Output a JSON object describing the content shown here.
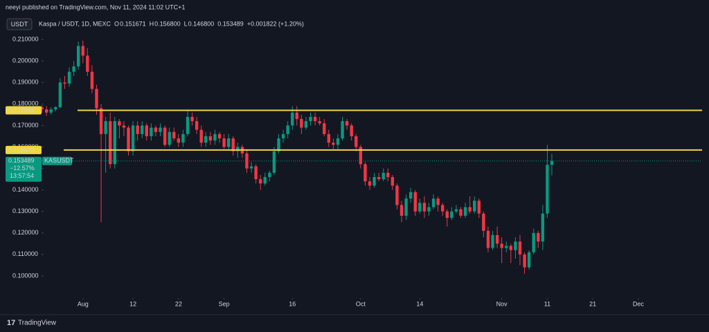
{
  "header": {
    "published": "neeyi published on TradingView.com, Nov 11, 2024 11:02 UTC+1",
    "currency_button": "USDT",
    "brand": "TradingView"
  },
  "chart_data": {
    "type": "candlestick",
    "legend": {
      "symbol": "Kaspa / USDT, 1D, MEXC",
      "open_key": "O",
      "open": "0.151671",
      "high_key": "H",
      "high": "0.156800",
      "low_key": "L",
      "low": "0.146800",
      "close": "0.153489",
      "change": "+0.001822 (+1.20%)"
    },
    "x": [
      "Jul 23",
      "Jul 24",
      "Jul 25",
      "Jul 26",
      "Jul 27",
      "Jul 28",
      "Jul 29",
      "Jul 30",
      "Jul 31",
      "Aug 1",
      "Aug 2",
      "Aug 3",
      "Aug 4",
      "Aug 5",
      "Aug 6",
      "Aug 7",
      "Aug 8",
      "Aug 9",
      "Aug 10",
      "Aug 11",
      "Aug 12",
      "Aug 13",
      "Aug 14",
      "Aug 15",
      "Aug 16",
      "Aug 17",
      "Aug 18",
      "Aug 19",
      "Aug 20",
      "Aug 21",
      "Aug 22",
      "Aug 23",
      "Aug 24",
      "Aug 25",
      "Aug 26",
      "Aug 27",
      "Aug 28",
      "Aug 29",
      "Aug 30",
      "Aug 31",
      "Sep 1",
      "Sep 2",
      "Sep 3",
      "Sep 4",
      "Sep 5",
      "Sep 6",
      "Sep 7",
      "Sep 8",
      "Sep 9",
      "Sep 10",
      "Sep 11",
      "Sep 12",
      "Sep 13",
      "Sep 14",
      "Sep 15",
      "Sep 16",
      "Sep 17",
      "Sep 18",
      "Sep 19",
      "Sep 20",
      "Sep 21",
      "Sep 22",
      "Sep 23",
      "Sep 24",
      "Sep 25",
      "Sep 26",
      "Sep 27",
      "Sep 28",
      "Sep 29",
      "Sep 30",
      "Oct 1",
      "Oct 2",
      "Oct 3",
      "Oct 4",
      "Oct 5",
      "Oct 6",
      "Oct 7",
      "Oct 8",
      "Oct 9",
      "Oct 10",
      "Oct 11",
      "Oct 12",
      "Oct 13",
      "Oct 14",
      "Oct 15",
      "Oct 16",
      "Oct 17",
      "Oct 18",
      "Oct 19",
      "Oct 20",
      "Oct 21",
      "Oct 22",
      "Oct 23",
      "Oct 24",
      "Oct 25",
      "Oct 26",
      "Oct 27",
      "Oct 28",
      "Oct 29",
      "Oct 30",
      "Oct 31",
      "Nov 1",
      "Nov 2",
      "Nov 3",
      "Nov 4",
      "Nov 5",
      "Nov 6",
      "Nov 7",
      "Nov 8",
      "Nov 9",
      "Nov 10",
      "Nov 11",
      "Nov 12"
    ],
    "open": [
      0.1785,
      0.1775,
      0.176,
      0.1775,
      0.1785,
      0.19,
      0.1895,
      0.195,
      0.1975,
      0.207,
      0.2025,
      0.195,
      0.187,
      0.178,
      0.166,
      0.172,
      0.152,
      0.172,
      0.17,
      0.169,
      0.158,
      0.17,
      0.166,
      0.17,
      0.165,
      0.169,
      0.167,
      0.169,
      0.161,
      0.167,
      0.164,
      0.162,
      0.166,
      0.174,
      0.172,
      0.168,
      0.162,
      0.165,
      0.163,
      0.166,
      0.164,
      0.16,
      0.164,
      0.158,
      0.16,
      0.157,
      0.15,
      0.151,
      0.145,
      0.143,
      0.146,
      0.148,
      0.158,
      0.164,
      0.166,
      0.17,
      0.176,
      0.173,
      0.169,
      0.172,
      0.174,
      0.172,
      0.171,
      0.166,
      0.162,
      0.161,
      0.164,
      0.172,
      0.17,
      0.165,
      0.16,
      0.152,
      0.144,
      0.142,
      0.146,
      0.145,
      0.148,
      0.146,
      0.142,
      0.133,
      0.128,
      0.136,
      0.139,
      0.13,
      0.134,
      0.13,
      0.132,
      0.136,
      0.133,
      0.13,
      0.127,
      0.13,
      0.131,
      0.128,
      0.132,
      0.13,
      0.135,
      0.129,
      0.121,
      0.113,
      0.119,
      0.115,
      0.113,
      0.114,
      0.112,
      0.116,
      0.11,
      0.104,
      0.111,
      0.12,
      0.116,
      0.129,
      0.151671
    ],
    "high": [
      0.1795,
      0.179,
      0.1785,
      0.179,
      0.192,
      0.193,
      0.197,
      0.2,
      0.209,
      0.2095,
      0.206,
      0.198,
      0.189,
      0.18,
      0.174,
      0.176,
      0.174,
      0.173,
      0.172,
      0.17,
      0.172,
      0.172,
      0.172,
      0.171,
      0.171,
      0.17,
      0.171,
      0.17,
      0.169,
      0.169,
      0.166,
      0.168,
      0.177,
      0.176,
      0.174,
      0.17,
      0.167,
      0.167,
      0.168,
      0.167,
      0.166,
      0.166,
      0.165,
      0.162,
      0.161,
      0.159,
      0.153,
      0.152,
      0.147,
      0.148,
      0.149,
      0.16,
      0.166,
      0.168,
      0.172,
      0.179,
      0.179,
      0.175,
      0.174,
      0.176,
      0.176,
      0.174,
      0.173,
      0.168,
      0.164,
      0.166,
      0.174,
      0.173,
      0.171,
      0.166,
      0.161,
      0.153,
      0.146,
      0.148,
      0.148,
      0.15,
      0.15,
      0.147,
      0.143,
      0.135,
      0.138,
      0.141,
      0.14,
      0.136,
      0.137,
      0.134,
      0.138,
      0.137,
      0.134,
      0.131,
      0.132,
      0.133,
      0.132,
      0.134,
      0.137,
      0.137,
      0.136,
      0.13,
      0.123,
      0.121,
      0.123,
      0.118,
      0.116,
      0.115,
      0.118,
      0.119,
      0.111,
      0.112,
      0.122,
      0.121,
      0.133,
      0.161,
      0.1568
    ],
    "low": [
      0.176,
      0.1745,
      0.175,
      0.1765,
      0.178,
      0.187,
      0.188,
      0.193,
      0.196,
      0.199,
      0.193,
      0.185,
      0.175,
      0.125,
      0.148,
      0.15,
      0.15,
      0.164,
      0.165,
      0.156,
      0.156,
      0.163,
      0.164,
      0.163,
      0.163,
      0.165,
      0.165,
      0.16,
      0.16,
      0.163,
      0.16,
      0.16,
      0.165,
      0.17,
      0.166,
      0.16,
      0.16,
      0.161,
      0.161,
      0.162,
      0.159,
      0.159,
      0.156,
      0.155,
      0.155,
      0.148,
      0.148,
      0.143,
      0.14,
      0.142,
      0.144,
      0.147,
      0.157,
      0.162,
      0.164,
      0.168,
      0.17,
      0.166,
      0.168,
      0.17,
      0.17,
      0.17,
      0.165,
      0.16,
      0.159,
      0.159,
      0.163,
      0.168,
      0.163,
      0.158,
      0.15,
      0.142,
      0.14,
      0.141,
      0.144,
      0.144,
      0.144,
      0.14,
      0.131,
      0.125,
      0.126,
      0.134,
      0.128,
      0.129,
      0.127,
      0.128,
      0.131,
      0.13,
      0.128,
      0.123,
      0.126,
      0.129,
      0.127,
      0.127,
      0.129,
      0.129,
      0.127,
      0.118,
      0.111,
      0.112,
      0.113,
      0.106,
      0.111,
      0.106,
      0.108,
      0.105,
      0.101,
      0.103,
      0.11,
      0.113,
      0.112,
      0.127,
      0.1468
    ],
    "close": [
      0.1775,
      0.176,
      0.1775,
      0.1785,
      0.19,
      0.1895,
      0.195,
      0.1975,
      0.207,
      0.2025,
      0.195,
      0.187,
      0.178,
      0.166,
      0.172,
      0.152,
      0.172,
      0.17,
      0.169,
      0.158,
      0.17,
      0.166,
      0.17,
      0.165,
      0.169,
      0.167,
      0.169,
      0.161,
      0.167,
      0.164,
      0.162,
      0.166,
      0.174,
      0.172,
      0.168,
      0.162,
      0.165,
      0.163,
      0.166,
      0.164,
      0.16,
      0.164,
      0.158,
      0.16,
      0.157,
      0.15,
      0.151,
      0.145,
      0.143,
      0.146,
      0.148,
      0.158,
      0.164,
      0.166,
      0.17,
      0.176,
      0.173,
      0.169,
      0.172,
      0.174,
      0.172,
      0.171,
      0.166,
      0.162,
      0.161,
      0.164,
      0.172,
      0.17,
      0.165,
      0.16,
      0.152,
      0.144,
      0.142,
      0.146,
      0.145,
      0.148,
      0.146,
      0.142,
      0.133,
      0.128,
      0.136,
      0.139,
      0.13,
      0.134,
      0.13,
      0.132,
      0.136,
      0.133,
      0.13,
      0.127,
      0.13,
      0.131,
      0.128,
      0.132,
      0.13,
      0.135,
      0.129,
      0.121,
      0.113,
      0.119,
      0.115,
      0.113,
      0.114,
      0.112,
      0.116,
      0.11,
      0.104,
      0.111,
      0.12,
      0.116,
      0.129,
      0.1517,
      0.153489
    ],
    "up_color": "#089981",
    "down_color": "#f23645",
    "xlim": [
      "Jul 22",
      "Dec 15"
    ],
    "xticks": [
      {
        "value": "Aug 1",
        "label": "Aug"
      },
      {
        "value": "Aug 12",
        "label": "12"
      },
      {
        "value": "Aug 22",
        "label": "22"
      },
      {
        "value": "Sep 1",
        "label": "Sep"
      },
      {
        "value": "Sep 16",
        "label": "16"
      },
      {
        "value": "Oct 1",
        "label": "Oct"
      },
      {
        "value": "Oct 14",
        "label": "14"
      },
      {
        "value": "Nov 1",
        "label": "Nov"
      },
      {
        "value": "Nov 11",
        "label": "11"
      },
      {
        "value": "Nov 21",
        "label": "21"
      },
      {
        "value": "Dec 1",
        "label": "Dec"
      }
    ],
    "ylim": [
      0.09,
      0.2139
    ],
    "yticks": [
      {
        "value": 0.1,
        "label": "0.100000"
      },
      {
        "value": 0.11,
        "label": "0.110000"
      },
      {
        "value": 0.12,
        "label": "0.120000"
      },
      {
        "value": 0.13,
        "label": "0.130000"
      },
      {
        "value": 0.14,
        "label": "0.140000"
      },
      {
        "value": 0.15,
        "label": "0.150000"
      },
      {
        "value": 0.16,
        "label": "0.160000"
      },
      {
        "value": 0.17,
        "label": "0.170000"
      },
      {
        "value": 0.18,
        "label": "0.180000"
      },
      {
        "value": 0.19,
        "label": "0.190000"
      },
      {
        "value": 0.2,
        "label": "0.200000"
      },
      {
        "value": 0.21,
        "label": "0.210000"
      }
    ],
    "levels": [
      {
        "value": 0.177041,
        "color": "#f0d83c"
      },
      {
        "value": 0.158573,
        "color": "#f0d83c"
      }
    ],
    "price_label": {
      "value": 0.153489,
      "symbol": "KASUSDT",
      "change": "−12.57%",
      "countdown": "13:57:54",
      "color": "#089981"
    },
    "grid": false
  }
}
